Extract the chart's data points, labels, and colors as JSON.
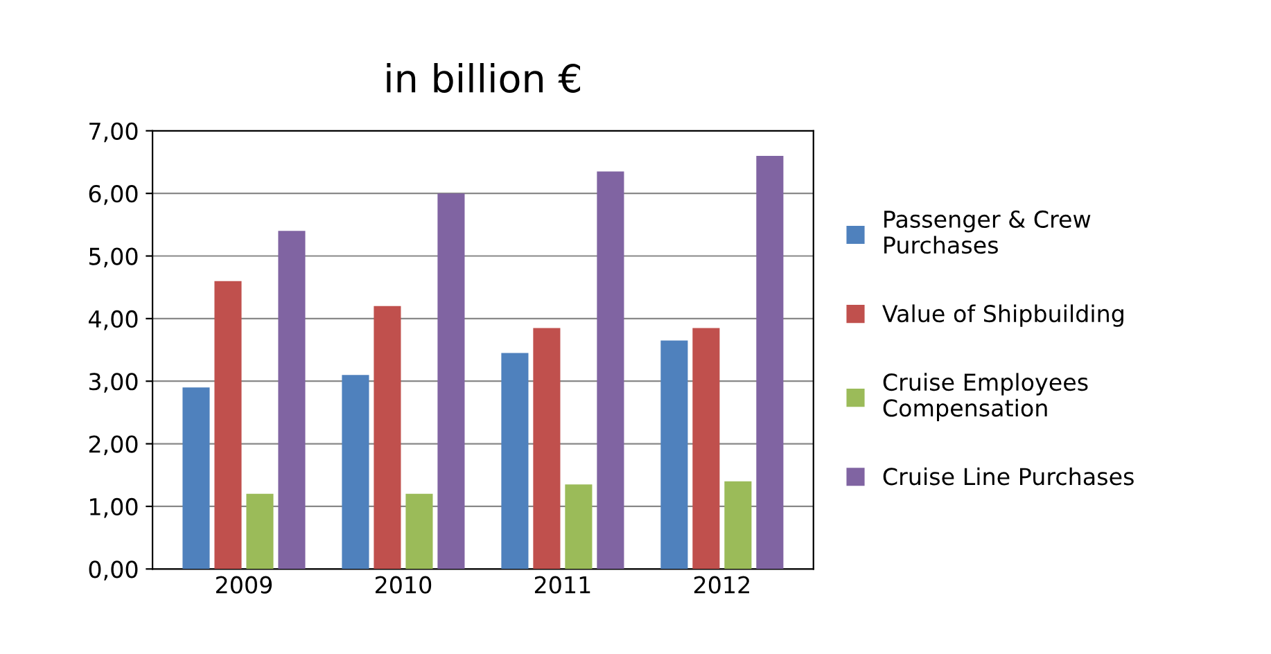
{
  "chart_data": {
    "type": "bar",
    "title": "in billion €",
    "categories": [
      "2009",
      "2010",
      "2011",
      "2012"
    ],
    "series": [
      {
        "name": "Passenger & Crew Purchases",
        "color": "#4f81bd",
        "values": [
          2.9,
          3.1,
          3.45,
          3.65
        ]
      },
      {
        "name": "Value of Shipbuilding",
        "color": "#c0504d",
        "values": [
          4.6,
          4.2,
          3.85,
          3.85
        ]
      },
      {
        "name": "Cruise Employees Compensation",
        "color": "#9bbb59",
        "values": [
          1.2,
          1.2,
          1.35,
          1.4
        ]
      },
      {
        "name": "Cruise Line Purchases",
        "color": "#8064a2",
        "values": [
          5.4,
          6.0,
          6.35,
          6.6
        ]
      }
    ],
    "ylim": [
      0,
      7
    ],
    "yticks": [
      {
        "value": 0,
        "label": "0,00"
      },
      {
        "value": 1,
        "label": "1,00"
      },
      {
        "value": 2,
        "label": "2,00"
      },
      {
        "value": 3,
        "label": "3,00"
      },
      {
        "value": 4,
        "label": "4,00"
      },
      {
        "value": 5,
        "label": "5,00"
      },
      {
        "value": 6,
        "label": "6,00"
      },
      {
        "value": 7,
        "label": "7,00"
      }
    ],
    "grid": "y",
    "legend": "right"
  }
}
